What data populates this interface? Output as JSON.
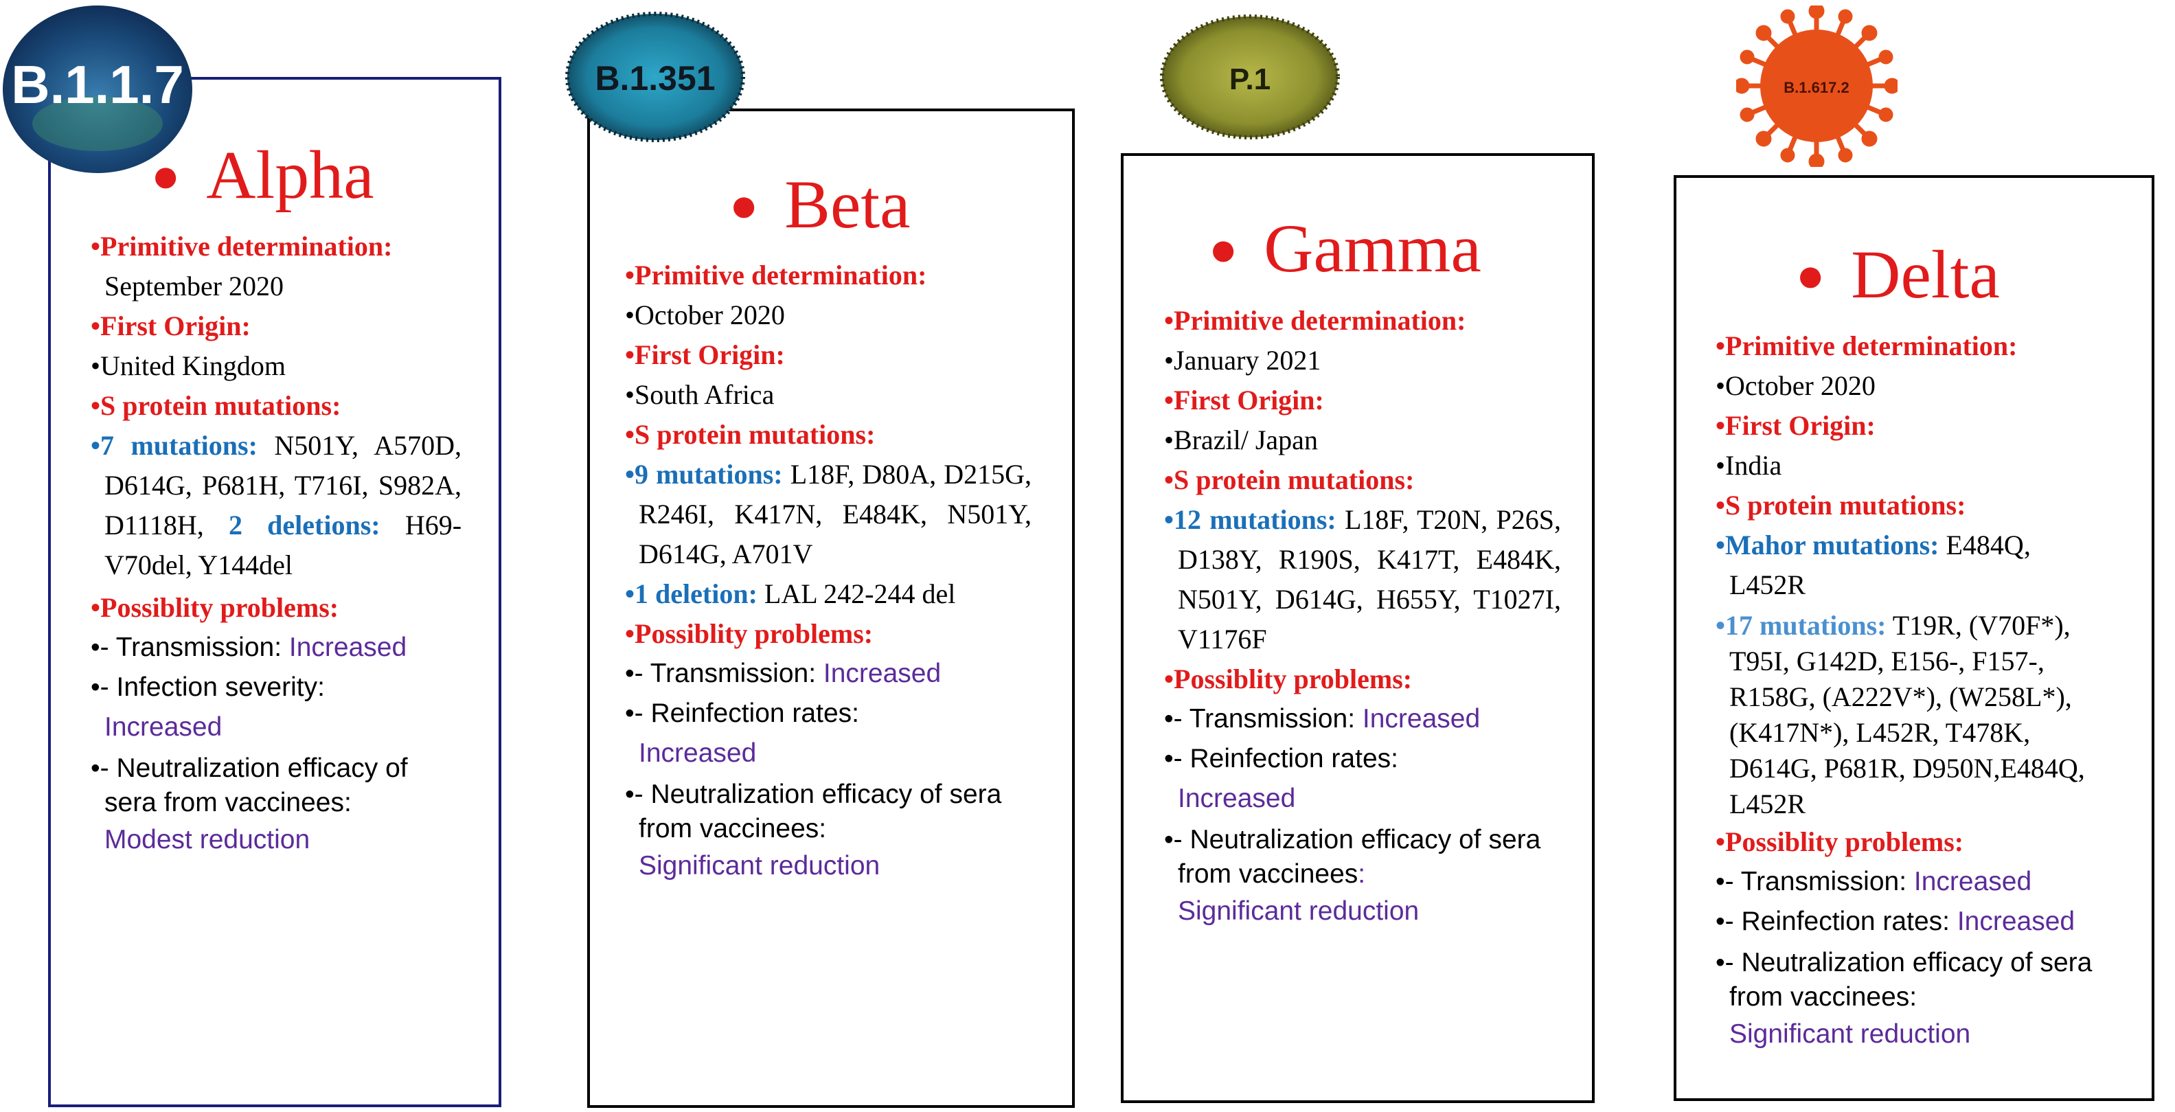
{
  "variants": [
    {
      "id": "alpha",
      "badge": "B.1.1.7",
      "badge_visible": "B.1.1.7",
      "name": "Alpha",
      "primitive_label": "Primitive determination:",
      "primitive_value": "September 2020",
      "origin_label": "First Origin:",
      "origin_value": "United Kingdom",
      "s_label": "S protein mutations:",
      "mut_count": "7 mutations:",
      "mutations": "N501Y, A570D, D614G, P681H, T716I, S982A, D1118H,",
      "del_count": "2 deletions:",
      "deletions": "H69-V70del, Y144del",
      "problems_label": "Possiblity problems:",
      "p1_label": "- Transmission: ",
      "p1_value": "Increased",
      "p2_label": "- Infection severity:",
      "p2_value": "Increased",
      "p3_label": "- Neutralization efficacy of sera from vaccinees:",
      "p3_value": "Modest reduction"
    },
    {
      "id": "beta",
      "badge": "B.1.351",
      "name": "Beta",
      "primitive_label": "Primitive determination:",
      "primitive_value": "October 2020",
      "origin_label": "First Origin:",
      "origin_value": "South Africa",
      "s_label": "S protein mutations:",
      "mut_count": "9 mutations:",
      "mutations": "L18F, D80A, D215G, R246I, K417N, E484K, N501Y, D614G, A701V",
      "del_count": "1 deletion:",
      "deletions": "LAL 242-244 del",
      "problems_label": "Possiblity problems:",
      "p1_label": "- Transmission: ",
      "p1_value": "Increased",
      "p2_label": "- Reinfection rates:",
      "p2_value": "Increased",
      "p3_label": "- Neutralization efficacy of sera from vaccinees:",
      "p3_value": "Significant reduction"
    },
    {
      "id": "gamma",
      "badge": "P.1",
      "name": "Gamma",
      "primitive_label": "Primitive determination:",
      "primitive_value": "January 2021",
      "origin_label": "First Origin:",
      "origin_value": "Brazil/ Japan",
      "s_label": "S protein mutations:",
      "mut_count": "12 mutations:",
      "mutations": "L18F, T20N, P26S, D138Y, R190S, K417T, E484K, N501Y, D614G, H655Y, T1027I, V1176F",
      "problems_label": "Possiblity problems:",
      "p1_label": "- Transmission: ",
      "p1_value": "Increased",
      "p2_label": "- Reinfection rates:",
      "p2_value": "Increased",
      "p3_label": "- Neutralization efficacy of sera from vaccinees",
      "p3_colon": ":",
      "p3_value": "Significant reduction"
    },
    {
      "id": "delta",
      "badge": "B.1.617.2",
      "name": "Delta",
      "primitive_label": "Primitive determination:",
      "primitive_value": "October 2020",
      "origin_label": "First Origin:",
      "origin_value": "India",
      "s_label": "S protein mutations:",
      "major_label": "Mahor mutations:",
      "major_value": "E484Q, L452R",
      "mut_count": "17 mutations:",
      "mutations": "T19R, (V70F*), T95I, G142D, E156-, F157-, R158G, (A222V*), (W258L*), (K417N*), L452R, T478K, D614G, P681R, D950N,E484Q, L452R",
      "problems_label": "Possiblity problems:",
      "p1_label": "- Transmission: ",
      "p1_value": "Increased",
      "p2_label": "- Reinfection rates: ",
      "p2_value": "Increased",
      "p3_label": "- Neutralization efficacy of sera from vaccinees:",
      "p3_value": "Significant reduction"
    }
  ],
  "alpha_badge_text": "B.1.1.7",
  "colors": {
    "title_red": "#e11b1b",
    "mutation_blue": "#1a6fb8",
    "value_purple": "#5b2b9a",
    "alpha_border": "#1a1e7a"
  }
}
